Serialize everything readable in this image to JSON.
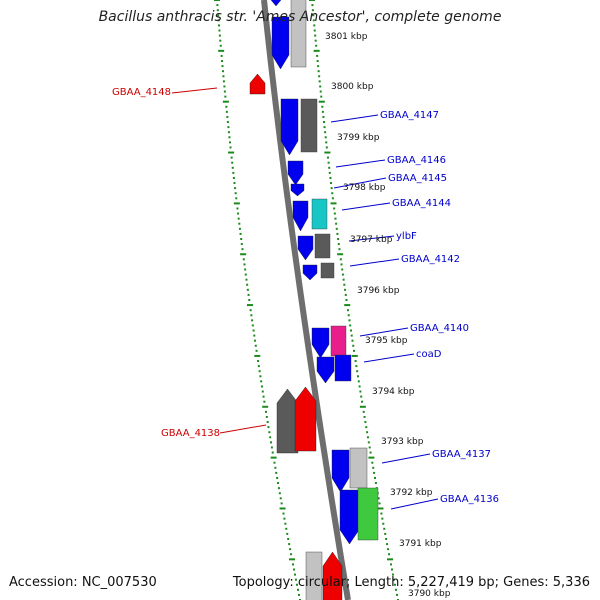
{
  "title": "Bacillus anthracis str. 'Ames Ancestor', complete genome",
  "accession_text": "Accession: NC_007530",
  "summary_text": "Topology: circular; Length: 5,227,419 bp; Genes: 5,336",
  "colors": {
    "forward_blue": "#0000ee",
    "gray_dark": "#5a5a5a",
    "gray_light": "#c2c2c2",
    "red": "#ee0000",
    "cyan": "#19c6c6",
    "magenta": "#e81e8c",
    "green": "#3ec93e",
    "tick_green": "#1a8a1a",
    "label_blue": "#0000cc",
    "label_red": "#cc0000"
  },
  "kbp_ticks": [
    "3801 kbp",
    "3800 kbp",
    "3799 kbp",
    "3798 kbp",
    "3797 kbp",
    "3796 kbp",
    "3795 kbp",
    "3794 kbp",
    "3793 kbp",
    "3792 kbp",
    "3791 kbp",
    "3790 kbp"
  ],
  "gene_labels": [
    {
      "text": "GBAA_4148",
      "color": "red"
    },
    {
      "text": "GBAA_4147",
      "color": "blue"
    },
    {
      "text": "GBAA_4146",
      "color": "blue"
    },
    {
      "text": "GBAA_4145",
      "color": "blue"
    },
    {
      "text": "GBAA_4144",
      "color": "blue"
    },
    {
      "text": "ylbF",
      "color": "blue"
    },
    {
      "text": "GBAA_4142",
      "color": "blue"
    },
    {
      "text": "GBAA_4140",
      "color": "blue"
    },
    {
      "text": "coaD",
      "color": "blue"
    },
    {
      "text": "GBAA_4138",
      "color": "red"
    },
    {
      "text": "GBAA_4137",
      "color": "blue"
    },
    {
      "text": "GBAA_4136",
      "color": "blue"
    }
  ]
}
